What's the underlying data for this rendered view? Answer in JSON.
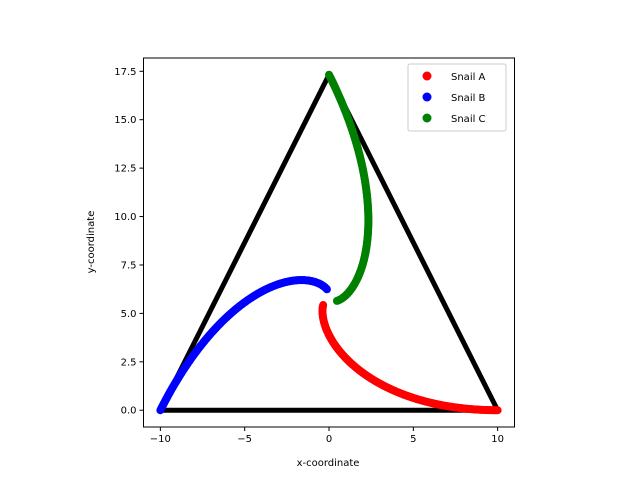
{
  "chart_data": {
    "type": "scatter",
    "title": "",
    "xlabel": "x-coordinate",
    "ylabel": "y-coordinate",
    "xlim": [
      -11.0,
      11.0
    ],
    "ylim": [
      -0.866,
      18.186
    ],
    "xticks": [
      -10,
      -5,
      0,
      5,
      10
    ],
    "xtick_labels": [
      "−10",
      "−5",
      "0",
      "5",
      "10"
    ],
    "yticks": [
      0.0,
      2.5,
      5.0,
      7.5,
      10.0,
      12.5,
      15.0,
      17.5
    ],
    "ytick_labels": [
      "0.0",
      "2.5",
      "5.0",
      "7.5",
      "10.0",
      "12.5",
      "15.0",
      "17.5"
    ],
    "grid": false,
    "legend_position": "top-right",
    "triangle": {
      "color": "#000000",
      "vertices": [
        [
          -10,
          0
        ],
        [
          10,
          0
        ],
        [
          0,
          17.32
        ],
        [
          -10,
          0
        ]
      ]
    },
    "series": [
      {
        "name": "Snail A",
        "color": "#ff0000",
        "start": [
          10,
          0
        ],
        "end": [
          0,
          5.7735
        ]
      },
      {
        "name": "Snail B",
        "color": "#0000ff",
        "start": [
          -10,
          0
        ],
        "end": [
          0,
          5.7735
        ]
      },
      {
        "name": "Snail C",
        "color": "#008000",
        "start": [
          0,
          17.3205
        ],
        "end": [
          0,
          5.7735
        ]
      }
    ]
  }
}
